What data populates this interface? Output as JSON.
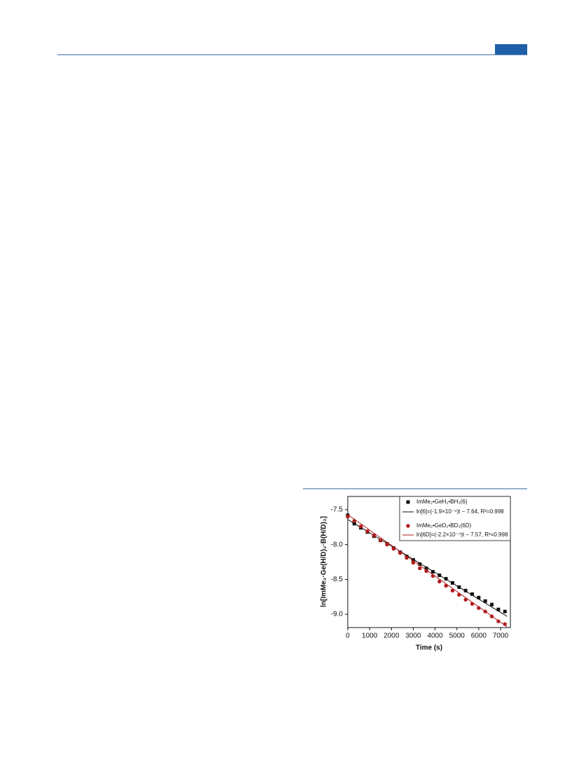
{
  "chart_data": {
    "type": "scatter",
    "xlabel": "Time (s)",
    "ylabel": "ln[ImMe₂·Ge(H/D)₂·B(H/D)₃]",
    "xlim": [
      0,
      7450
    ],
    "ylim": [
      -9.19,
      -7.31
    ],
    "xticks": [
      0,
      1000,
      2000,
      3000,
      4000,
      5000,
      6000,
      7000
    ],
    "yticks": [
      -7.5,
      {
        "value": -8,
        "label": "-8.0"
      },
      -8.5,
      {
        "value": -9,
        "label": "-9.0"
      }
    ],
    "x": [
      0,
      300,
      600,
      900,
      1200,
      1500,
      1800,
      2100,
      2400,
      2700,
      3000,
      3300,
      3600,
      3900,
      4200,
      4500,
      4800,
      5100,
      5400,
      5700,
      6000,
      6300,
      6600,
      6900,
      7200
    ],
    "legend": "upper right",
    "series": [
      {
        "name": "ImMe₂•GeH₂•BH₃(6)",
        "color": "#111111",
        "style": "scatter",
        "marker": "square",
        "values": [
          -7.58,
          -7.7,
          -7.76,
          -7.82,
          -7.88,
          -7.94,
          -7.99,
          -8.05,
          -8.11,
          -8.17,
          -8.22,
          -8.28,
          -8.34,
          -8.39,
          -8.44,
          -8.49,
          -8.55,
          -8.61,
          -8.66,
          -8.71,
          -8.76,
          -8.81,
          -8.86,
          -8.93,
          -8.96
        ]
      },
      {
        "name": "ln[6]=(-1.9×10⁻⁴)t − 7.64, R²=0.998",
        "color": "#111111",
        "style": "line",
        "x": [
          0,
          7300
        ],
        "values": [
          -7.64,
          -9.03
        ]
      },
      {
        "name": "ImMe₂•GeD₂•BD₃(6D)",
        "color": "#b01c1c",
        "style": "scatter",
        "marker": "circle",
        "values": [
          -7.6,
          -7.66,
          -7.74,
          -7.81,
          -7.87,
          -7.94,
          -8.0,
          -8.06,
          -8.12,
          -8.19,
          -8.26,
          -8.34,
          -8.38,
          -8.45,
          -8.53,
          -8.59,
          -8.66,
          -8.72,
          -8.79,
          -8.85,
          -8.91,
          -8.96,
          -9.03,
          -9.1,
          -9.14
        ]
      },
      {
        "name": "ln[6D]=(-2.2×10⁻⁴)t − 7.57, R²=0.998",
        "color": "#b01c1c",
        "style": "line",
        "x": [
          0,
          7300
        ],
        "values": [
          -7.57,
          -9.18
        ]
      }
    ]
  }
}
